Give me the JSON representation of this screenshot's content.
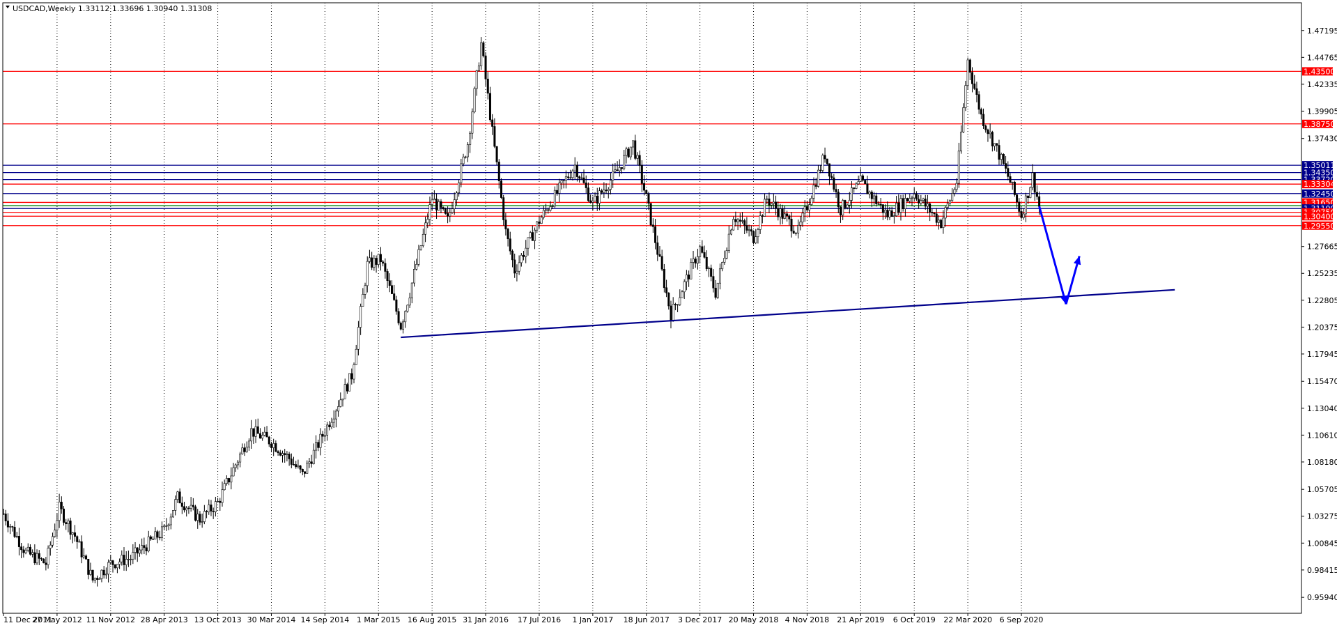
{
  "chart_data": {
    "type": "candlestick",
    "symbol_header": "USDCAD,Weekly  1.33112 1.33696 1.30940 1.31308",
    "ylim": [
      0.945,
      1.497
    ],
    "y_ticks": [
      "1.47195",
      "1.44765",
      "1.42335",
      "1.39905",
      "1.37430",
      "1.27665",
      "1.25235",
      "1.22805",
      "1.20375",
      "1.17945",
      "1.15470",
      "1.13040",
      "1.10610",
      "1.08180",
      "1.05705",
      "1.03275",
      "1.00845",
      "0.98415",
      "0.95940"
    ],
    "x_ticks": [
      "11 Dec 2011",
      "27 May 2012",
      "11 Nov 2012",
      "28 Apr 2013",
      "13 Oct 2013",
      "30 Mar 2014",
      "14 Sep 2014",
      "1 Mar 2015",
      "16 Aug 2015",
      "31 Jan 2016",
      "17 Jul 2016",
      "1 Jan 2017",
      "18 Jun 2017",
      "3 Dec 2017",
      "20 May 2018",
      "4 Nov 2018",
      "21 Apr 2019",
      "6 Oct 2019",
      "22 Mar 2020",
      "6 Sep 2020"
    ],
    "price_path": [
      {
        "date": "2011-12-11",
        "price": 1.035
      },
      {
        "date": "2012-02-19",
        "price": 1.0
      },
      {
        "date": "2012-04-22",
        "price": 0.99
      },
      {
        "date": "2012-06-03",
        "price": 1.04
      },
      {
        "date": "2012-07-22",
        "price": 1.015
      },
      {
        "date": "2012-09-16",
        "price": 0.975
      },
      {
        "date": "2012-11-11",
        "price": 0.99
      },
      {
        "date": "2013-01-13",
        "price": 0.995
      },
      {
        "date": "2013-04-28",
        "price": 1.02
      },
      {
        "date": "2013-06-09",
        "price": 1.05
      },
      {
        "date": "2013-08-18",
        "price": 1.03
      },
      {
        "date": "2013-10-13",
        "price": 1.045
      },
      {
        "date": "2014-01-26",
        "price": 1.11
      },
      {
        "date": "2014-03-30",
        "price": 1.1
      },
      {
        "date": "2014-05-25",
        "price": 1.085
      },
      {
        "date": "2014-07-06",
        "price": 1.07
      },
      {
        "date": "2014-09-14",
        "price": 1.11
      },
      {
        "date": "2014-12-07",
        "price": 1.16
      },
      {
        "date": "2015-01-25",
        "price": 1.26
      },
      {
        "date": "2015-03-08",
        "price": 1.265
      },
      {
        "date": "2015-05-10",
        "price": 1.205
      },
      {
        "date": "2015-06-07",
        "price": 1.235
      },
      {
        "date": "2015-08-16",
        "price": 1.32
      },
      {
        "date": "2015-10-04",
        "price": 1.3
      },
      {
        "date": "2015-12-06",
        "price": 1.37
      },
      {
        "date": "2016-01-17",
        "price": 1.46
      },
      {
        "date": "2016-02-21",
        "price": 1.38
      },
      {
        "date": "2016-04-03",
        "price": 1.29
      },
      {
        "date": "2016-05-01",
        "price": 1.255
      },
      {
        "date": "2016-07-17",
        "price": 1.3
      },
      {
        "date": "2016-11-06",
        "price": 1.35
      },
      {
        "date": "2017-01-01",
        "price": 1.315
      },
      {
        "date": "2017-03-19",
        "price": 1.345
      },
      {
        "date": "2017-05-07",
        "price": 1.37
      },
      {
        "date": "2017-06-18",
        "price": 1.32
      },
      {
        "date": "2017-09-03",
        "price": 1.215
      },
      {
        "date": "2017-12-03",
        "price": 1.275
      },
      {
        "date": "2018-01-21",
        "price": 1.235
      },
      {
        "date": "2018-03-18",
        "price": 1.305
      },
      {
        "date": "2018-05-20",
        "price": 1.285
      },
      {
        "date": "2018-07-01",
        "price": 1.32
      },
      {
        "date": "2018-10-07",
        "price": 1.29
      },
      {
        "date": "2018-12-30",
        "price": 1.36
      },
      {
        "date": "2019-02-17",
        "price": 1.31
      },
      {
        "date": "2019-04-21",
        "price": 1.335
      },
      {
        "date": "2019-07-14",
        "price": 1.305
      },
      {
        "date": "2019-10-06",
        "price": 1.325
      },
      {
        "date": "2019-12-29",
        "price": 1.298
      },
      {
        "date": "2020-02-16",
        "price": 1.335
      },
      {
        "date": "2020-03-22",
        "price": 1.445
      },
      {
        "date": "2020-05-03",
        "price": 1.395
      },
      {
        "date": "2020-06-28",
        "price": 1.36
      },
      {
        "date": "2020-08-02",
        "price": 1.335
      },
      {
        "date": "2020-09-06",
        "price": 1.305
      },
      {
        "date": "2020-10-11",
        "price": 1.34
      },
      {
        "date": "2020-11-01",
        "price": 1.313
      }
    ],
    "level_lines": [
      {
        "price": 1.435,
        "color": "#ff0000",
        "label": "1.43500",
        "labeled": true
      },
      {
        "price": 1.3875,
        "color": "#ff0000",
        "label": "1.38750",
        "labeled": true
      },
      {
        "price": 1.35011,
        "color": "#00008b",
        "label": "1.35011",
        "labeled": true
      },
      {
        "price": 1.3435,
        "color": "#00008b",
        "label": "1.34350",
        "labeled": true
      },
      {
        "price": 1.3372,
        "color": "#00008b",
        "label": "1.33720",
        "labeled": true
      },
      {
        "price": 1.33304,
        "color": "#ff0000",
        "label": "1.33304",
        "labeled": true
      },
      {
        "price": 1.3245,
        "color": "#00008b",
        "label": "1.32450",
        "labeled": true
      },
      {
        "price": 1.3165,
        "color": "#ff0000",
        "label": "1.31650",
        "labeled": true
      },
      {
        "price": 1.3135,
        "color": "#008000",
        "label": "",
        "labeled": false
      },
      {
        "price": 1.311,
        "color": "#00008b",
        "label": "1.31100",
        "labeled": true
      },
      {
        "price": 1.3075,
        "color": "#ff0000",
        "label": "1.30750",
        "labeled": true
      },
      {
        "price": 1.304,
        "color": "#ff0000",
        "label": "1.30400",
        "labeled": true
      },
      {
        "price": 1.2955,
        "color": "#ff0000",
        "label": "1.29550",
        "labeled": true
      }
    ],
    "trendline": {
      "color": "#00008b",
      "from": {
        "date": "2015-05-10",
        "price": 1.1945
      },
      "to": {
        "date": "2021-12-31",
        "price": 1.2375
      }
    },
    "projection_arrows": [
      {
        "color": "#0000ff",
        "from": {
          "date": "2020-11-01",
          "price": 1.313
        },
        "to": {
          "date": "2021-01-24",
          "price": 1.2245
        }
      },
      {
        "color": "#0000ff",
        "from": {
          "date": "2021-01-24",
          "price": 1.2245
        },
        "to": {
          "date": "2021-03-07",
          "price": 1.268
        }
      }
    ],
    "grid": {
      "vertical": "dotted",
      "horizontal": false
    },
    "legend": "none"
  }
}
